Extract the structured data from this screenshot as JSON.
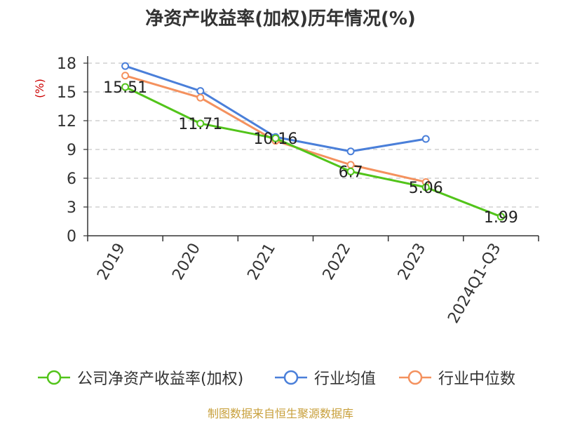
{
  "chart_data": {
    "type": "line",
    "title": "净资产收益率(加权)历年情况(%)",
    "ylabel": "(%)",
    "xlabel": "",
    "ylim": [
      0,
      18
    ],
    "yticks": [
      0,
      3,
      6,
      9,
      12,
      15,
      18
    ],
    "categories": [
      "2019",
      "2020",
      "2021",
      "2022",
      "2023",
      "2024Q1-Q3"
    ],
    "grid": true,
    "legend_position": "bottom",
    "series": [
      {
        "name": "公司净资产收益率(加权)",
        "color": "#52c41a",
        "values": [
          15.51,
          11.71,
          10.16,
          6.7,
          5.06,
          1.99
        ],
        "labels": [
          "15.51",
          "11.71",
          "10.16",
          "6.7",
          "5.06",
          "1.99"
        ]
      },
      {
        "name": "行业均值",
        "color": "#4a7fd9",
        "values": [
          17.7,
          15.1,
          10.3,
          8.8,
          10.1,
          null
        ]
      },
      {
        "name": "行业中位数",
        "color": "#f4915e",
        "values": [
          16.7,
          14.4,
          9.9,
          7.4,
          5.6,
          null
        ]
      }
    ]
  },
  "source": "制图数据来自恒生聚源数据库"
}
